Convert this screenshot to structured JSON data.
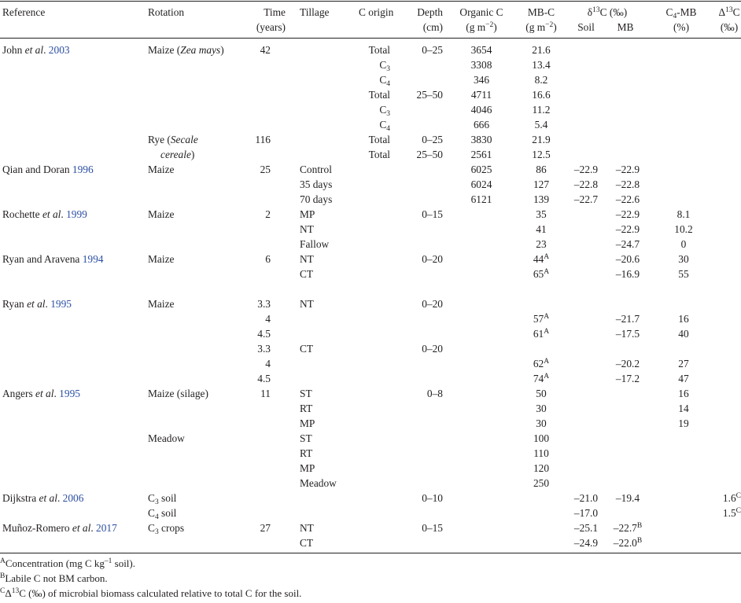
{
  "headers": {
    "reference": "Reference",
    "rotation": "Rotation",
    "time_1": "Time",
    "time_2": "(years)",
    "tillage": "Tillage",
    "c_origin": "C origin",
    "depth_1": "Depth",
    "depth_2": "(cm)",
    "org_c_1": "Organic C",
    "org_c_2a": "(g m",
    "org_c_2b": "−2",
    "org_c_2c": ")",
    "mbc_1": "MB-C",
    "mbc_2a": "(g m",
    "mbc_2b": "−2",
    "mbc_2c": ")",
    "d13c_a": "δ",
    "d13c_b": "13",
    "d13c_c": "C (‰)",
    "soil": "Soil",
    "mb": "MB",
    "c4mb_a": "C",
    "c4mb_b": "4",
    "c4mb_c": "-MB",
    "c4mb_2": "(%)",
    "delta_a": "Δ",
    "delta_b": "13",
    "delta_c": "C",
    "delta_2": "(‰)"
  },
  "rows": [
    {
      "y": 0,
      "ref": {
        "pre": "John ",
        "it": "et al",
        "post": ". ",
        "year": "2003"
      },
      "rot": {
        "pre": "Maize (",
        "it": "Zea mays",
        "post": ")"
      },
      "time": "42",
      "cor": {
        "t": "Total"
      },
      "depth": "0–25",
      "orgc": "3654",
      "mbc": {
        "v": "21.6"
      }
    },
    {
      "y": 1,
      "cor": {
        "t": "C",
        "sub": "3"
      },
      "orgc": "3308",
      "mbc": {
        "v": "13.4"
      }
    },
    {
      "y": 2,
      "cor": {
        "t": "C",
        "sub": "4"
      },
      "orgc": "346",
      "mbc": {
        "v": "8.2"
      }
    },
    {
      "y": 3,
      "cor": {
        "t": "Total"
      },
      "depth": "25–50",
      "orgc": "4711",
      "mbc": {
        "v": "16.6"
      }
    },
    {
      "y": 4,
      "cor": {
        "t": "C",
        "sub": "3"
      },
      "orgc": "4046",
      "mbc": {
        "v": "11.2"
      }
    },
    {
      "y": 5,
      "cor": {
        "t": "C",
        "sub": "4"
      },
      "orgc": "666",
      "mbc": {
        "v": "5.4"
      }
    },
    {
      "y": 6,
      "rot": {
        "pre": "Rye (",
        "it": "Secale",
        "post": ""
      },
      "time": "116",
      "cor": {
        "t": "Total"
      },
      "depth": "0–25",
      "orgc": "3830",
      "mbc": {
        "v": "21.9"
      }
    },
    {
      "y": 7,
      "rot_cont": {
        "it": "cereale",
        "post": ")"
      },
      "cor": {
        "t": "Total"
      },
      "depth": "25–50",
      "orgc": "2561",
      "mbc": {
        "v": "12.5"
      }
    },
    {
      "y": 8,
      "ref": {
        "pre": "Qian and Doran ",
        "it": "",
        "post": "",
        "year": "1996"
      },
      "rot": {
        "pre": "Maize",
        "it": "",
        "post": ""
      },
      "time": "25",
      "till": "Control",
      "orgc": "6025",
      "mbc": {
        "v": "86"
      },
      "soil": "–22.9",
      "mb": {
        "v": "–22.9"
      }
    },
    {
      "y": 9,
      "till": "35 days",
      "orgc": "6024",
      "mbc": {
        "v": "127"
      },
      "soil": "–22.8",
      "mb": {
        "v": "–22.8"
      }
    },
    {
      "y": 10,
      "till": "70 days",
      "orgc": "6121",
      "mbc": {
        "v": "139"
      },
      "soil": "–22.7",
      "mb": {
        "v": "–22.6"
      }
    },
    {
      "y": 11,
      "ref": {
        "pre": "Rochette ",
        "it": "et al",
        "post": ". ",
        "year": "1999"
      },
      "rot": {
        "pre": "Maize",
        "it": "",
        "post": ""
      },
      "time": "2",
      "till": "MP",
      "depth": "0–15",
      "mbc": {
        "v": "35"
      },
      "mb": {
        "v": "–22.9"
      },
      "c4mb": "8.1"
    },
    {
      "y": 12,
      "till": "NT",
      "mbc": {
        "v": "41"
      },
      "mb": {
        "v": "–22.9"
      },
      "c4mb": "10.2"
    },
    {
      "y": 13,
      "till": "Fallow",
      "mbc": {
        "v": "23"
      },
      "mb": {
        "v": "–24.7"
      },
      "c4mb": "0"
    },
    {
      "y": 14,
      "ref": {
        "pre": "Ryan and Aravena ",
        "it": "",
        "post": "",
        "year": "1994"
      },
      "rot": {
        "pre": "Maize",
        "it": "",
        "post": ""
      },
      "time": "6",
      "till": "NT",
      "depth": "0–20",
      "mbc": {
        "v": "44",
        "sup": "A"
      },
      "mb": {
        "v": "–20.6"
      },
      "c4mb": "30"
    },
    {
      "y": 15,
      "till": "CT",
      "mbc": {
        "v": "65",
        "sup": "A"
      },
      "mb": {
        "v": "–16.9"
      },
      "c4mb": "55"
    },
    {
      "y": 17,
      "ref": {
        "pre": "Ryan ",
        "it": "et al",
        "post": ". ",
        "year": "1995"
      },
      "rot": {
        "pre": "Maize",
        "it": "",
        "post": ""
      },
      "time": "3.3",
      "till": "NT",
      "depth": "0–20"
    },
    {
      "y": 18,
      "time": "4",
      "mbc": {
        "v": "57",
        "sup": "A"
      },
      "mb": {
        "v": "–21.7"
      },
      "c4mb": "16"
    },
    {
      "y": 19,
      "time": "4.5",
      "mbc": {
        "v": "61",
        "sup": "A"
      },
      "mb": {
        "v": "–17.5"
      },
      "c4mb": "40"
    },
    {
      "y": 20,
      "time": "3.3",
      "till": "CT",
      "depth": "0–20"
    },
    {
      "y": 21,
      "time": "4",
      "mbc": {
        "v": "62",
        "sup": "A"
      },
      "mb": {
        "v": "–20.2"
      },
      "c4mb": "27"
    },
    {
      "y": 22,
      "time": "4.5",
      "mbc": {
        "v": "74",
        "sup": "A"
      },
      "mb": {
        "v": "–17.2"
      },
      "c4mb": "47"
    },
    {
      "y": 23,
      "ref": {
        "pre": "Angers ",
        "it": "et al",
        "post": ". ",
        "year": "1995"
      },
      "rot": {
        "pre": "Maize (silage)",
        "it": "",
        "post": ""
      },
      "time": "11",
      "till": "ST",
      "depth": "0–8",
      "mbc": {
        "v": "50"
      },
      "c4mb": "16"
    },
    {
      "y": 24,
      "till": "RT",
      "mbc": {
        "v": "30"
      },
      "c4mb": "14"
    },
    {
      "y": 25,
      "till": "MP",
      "mbc": {
        "v": "30"
      },
      "c4mb": "19"
    },
    {
      "y": 26,
      "rot": {
        "pre": "Meadow",
        "it": "",
        "post": ""
      },
      "till": "ST",
      "mbc": {
        "v": "100"
      }
    },
    {
      "y": 27,
      "till": "RT",
      "mbc": {
        "v": "110"
      }
    },
    {
      "y": 28,
      "till": "MP",
      "mbc": {
        "v": "120"
      }
    },
    {
      "y": 29,
      "till": "Meadow",
      "mbc": {
        "v": "250"
      }
    },
    {
      "y": 30,
      "ref": {
        "pre": "Dijkstra ",
        "it": "et al",
        "post": ". ",
        "year": "2006"
      },
      "rot": {
        "pre": "C",
        "sub": "3",
        "it": "",
        "post": " soil"
      },
      "depth": "0–10",
      "soil": "–21.0",
      "mb": {
        "v": "–19.4"
      },
      "delta": {
        "v": "1.6",
        "sup": "C"
      }
    },
    {
      "y": 31,
      "rot": {
        "pre": "C",
        "sub": "4",
        "it": "",
        "post": " soil"
      },
      "soil": "–17.0",
      "delta": {
        "v": "1.5",
        "sup": "C"
      }
    },
    {
      "y": 32,
      "ref": {
        "pre": "Muñoz-Romero ",
        "it": "et al",
        "post": ". ",
        "year": "2017"
      },
      "rot": {
        "pre": "C",
        "sub": "3",
        "it": "",
        "post": " crops"
      },
      "time": "27",
      "till": "NT",
      "depth": "0–15",
      "soil": "–25.1",
      "mb": {
        "v": "–22.7",
        "sup": "B"
      }
    },
    {
      "y": 33,
      "till": "CT",
      "soil": "–24.9",
      "mb": {
        "v": "–22.0",
        "sup": "B"
      }
    }
  ],
  "footnotes": [
    {
      "sup": "A",
      "parts": [
        "Concentration (mg C kg",
        "–1",
        " soil)."
      ]
    },
    {
      "sup": "B",
      "parts": [
        "Labile C not BM carbon.",
        "",
        ""
      ]
    },
    {
      "sup": "C",
      "parts": [
        "Δ",
        "13",
        "C (‰) of microbial biomass calculated relative to total C for the soil."
      ]
    }
  ]
}
